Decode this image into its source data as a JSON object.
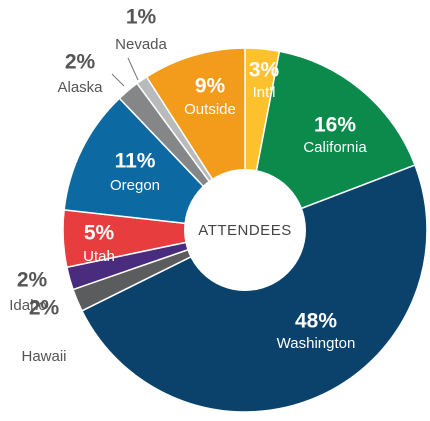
{
  "chart_data": {
    "type": "donut",
    "title": "ATTENDEES",
    "categories": [
      "Int'l",
      "California",
      "Washington",
      "Hawaii",
      "Idaho",
      "Utah",
      "Oregon",
      "Alaska",
      "Nevada",
      "Outside"
    ],
    "values": [
      3,
      16,
      48,
      2,
      2,
      5,
      11,
      2,
      1,
      9
    ],
    "value_labels": [
      "3%",
      "16%",
      "48%",
      "2%",
      "2%",
      "5%",
      "11%",
      "2%",
      "1%",
      "9%"
    ],
    "colors": [
      "#fdc12e",
      "#0b8a4c",
      "#0a426b",
      "#5b5c5e",
      "#4a2c7e",
      "#e73d3e",
      "#0c69a2",
      "#858688",
      "#b9babc",
      "#f39c1b"
    ]
  }
}
